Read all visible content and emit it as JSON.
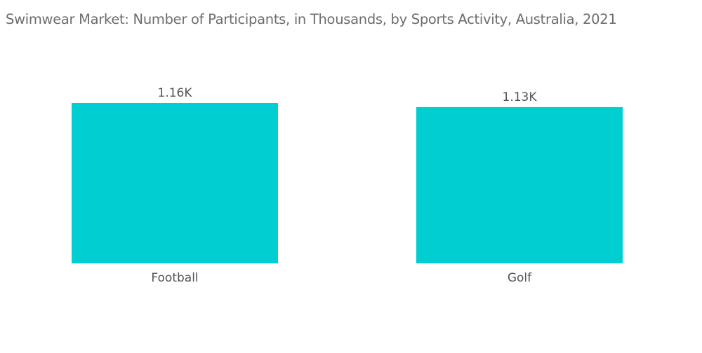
{
  "chart_data": {
    "type": "bar",
    "title": "Swimwear Market: Number of Participants, in Thousands, by Sports Activity, Australia, 2021",
    "categories": [
      "Football",
      "Golf"
    ],
    "values": [
      1.16,
      1.13
    ],
    "data_labels": [
      "1.16K",
      "1.13K"
    ],
    "xlabel": "",
    "ylabel": "",
    "ylim": [
      0,
      1.16
    ],
    "grid": false,
    "legend": "none",
    "bar_color": "#00CED1"
  }
}
